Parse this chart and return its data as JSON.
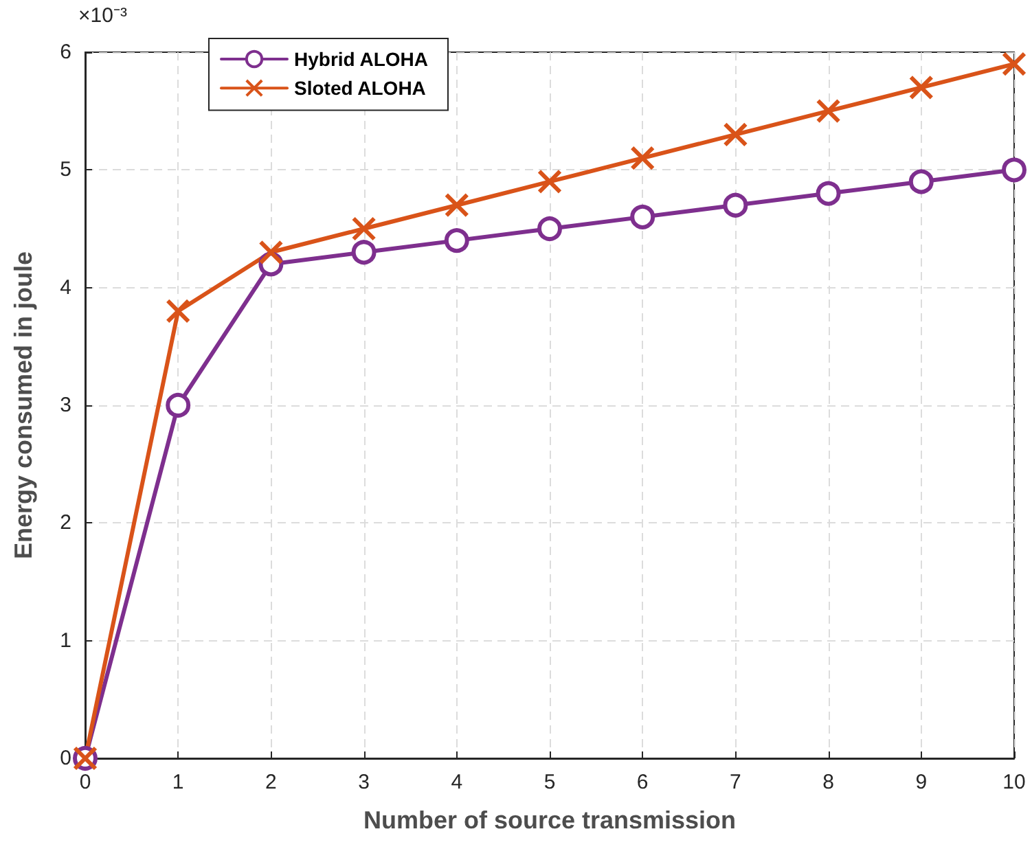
{
  "chart_data": {
    "type": "line",
    "xlabel": "Number of source transmission",
    "ylabel": "Energy consumed in joule",
    "annotations": [
      "×10⁻³"
    ],
    "x": [
      0,
      1,
      2,
      3,
      4,
      5,
      6,
      7,
      8,
      9,
      10
    ],
    "series": [
      {
        "name": "Hybrid ALOHA",
        "color": "#7e2f8e",
        "marker": "circle",
        "values": [
          0,
          3,
          4.2,
          4.3,
          4.4,
          4.5,
          4.6,
          4.7,
          4.8,
          4.9,
          5.0
        ]
      },
      {
        "name": "Sloted ALOHA",
        "color": "#d95319",
        "marker": "cross",
        "values": [
          0,
          3.8,
          4.3,
          4.5,
          4.7,
          4.9,
          5.1,
          5.3,
          5.5,
          5.7,
          5.9
        ]
      }
    ],
    "xlim": [
      0,
      10
    ],
    "xticks": [
      0,
      1,
      2,
      3,
      4,
      5,
      6,
      7,
      8,
      9,
      10
    ],
    "ylim": [
      0,
      6
    ],
    "yticks": [
      0,
      1,
      2,
      3,
      4,
      5,
      6
    ],
    "grid": true,
    "legend": "top left",
    "line_style": "solid"
  }
}
